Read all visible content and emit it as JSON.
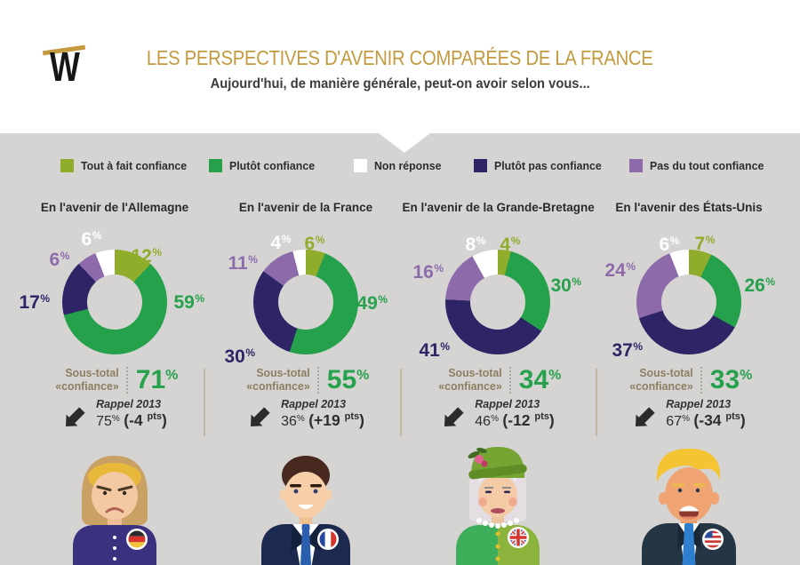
{
  "header": {
    "logo_letter": "W",
    "title": "LES PERSPECTIVES D'AVENIR COMPARÉES DE LA FRANCE",
    "subtitle": "Aujourd'hui, de manière générale, peut-on avoir selon vous..."
  },
  "colors": {
    "background": "#ffffff",
    "band": "#d5d4d3",
    "gold": "#c49a3f",
    "tout_a_fait": "#8fad2b",
    "plutot": "#26a14b",
    "non_reponse": "#ffffff",
    "plutot_pas": "#2d2566",
    "pas_du_tout": "#8d6bab",
    "subtotal_green": "#27a24c",
    "subtotal_label": "#8c7e60",
    "divider": "#c3b9a2"
  },
  "legend": {
    "items": [
      {
        "key": "tout_a_fait",
        "label": "Tout à fait confiance"
      },
      {
        "key": "plutot",
        "label": "Plutôt confiance"
      },
      {
        "key": "non_reponse",
        "label": "Non réponse"
      },
      {
        "key": "plutot_pas",
        "label": "Plutôt pas confiance"
      },
      {
        "key": "pas_du_tout",
        "label": "Pas du tout confiance"
      }
    ]
  },
  "chart_data": {
    "type": "pie",
    "variant": "donut",
    "segment_order": [
      "tout_a_fait",
      "plutot",
      "plutot_pas",
      "pas_du_tout",
      "non_reponse"
    ],
    "charts": [
      {
        "country": "allemagne",
        "title": "En l'avenir de l'Allemagne",
        "person": "Angela Merkel",
        "values": {
          "tout_a_fait": 12,
          "plutot": 59,
          "plutot_pas": 17,
          "pas_du_tout": 6,
          "non_reponse": 6
        },
        "subtotal_label_line1": "Sous-total",
        "subtotal_label_line2": "«confiance»",
        "subtotal": 71,
        "rappel_label": "Rappel 2013",
        "rappel_value": 75,
        "evolution": "(-4 pts)"
      },
      {
        "country": "france",
        "title": "En l'avenir de la France",
        "person": "Emmanuel Macron",
        "values": {
          "tout_a_fait": 6,
          "plutot": 49,
          "plutot_pas": 30,
          "pas_du_tout": 11,
          "non_reponse": 4
        },
        "subtotal_label_line1": "Sous-total",
        "subtotal_label_line2": "«confiance»",
        "subtotal": 55,
        "rappel_label": "Rappel 2013",
        "rappel_value": 36,
        "evolution": "(+19 pts)"
      },
      {
        "country": "grande-bretagne",
        "title": "En l'avenir de la Grande-Bretagne",
        "person": "Elizabeth II",
        "values": {
          "tout_a_fait": 4,
          "plutot": 30,
          "plutot_pas": 41,
          "pas_du_tout": 16,
          "non_reponse": 8
        },
        "subtotal_label_line1": "Sous-total",
        "subtotal_label_line2": "«confiance»",
        "subtotal": 34,
        "rappel_label": "Rappel 2013",
        "rappel_value": 46,
        "evolution": "(-12 pts)"
      },
      {
        "country": "etats-unis",
        "title": "En l'avenir des États-Unis",
        "person": "Donald Trump",
        "values": {
          "tout_a_fait": 7,
          "plutot": 26,
          "plutot_pas": 37,
          "pas_du_tout": 24,
          "non_reponse": 6
        },
        "subtotal_label_line1": "Sous-total",
        "subtotal_label_line2": "«confiance»",
        "subtotal": 33,
        "rappel_label": "Rappel 2013",
        "rappel_value": 67,
        "evolution": "(-34 pts)"
      }
    ]
  }
}
